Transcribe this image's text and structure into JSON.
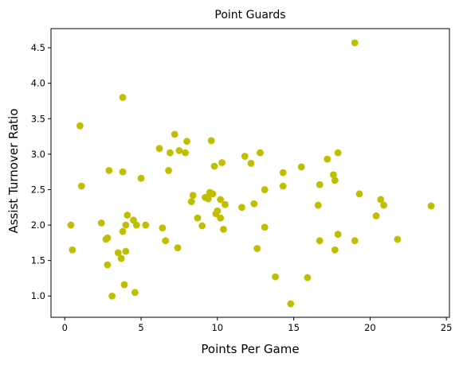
{
  "chart_data": {
    "type": "scatter",
    "title": "Point Guards",
    "xlabel": "Points Per Game",
    "ylabel": "Assist Turnover Ratio",
    "xlim": [
      -0.9,
      25.2
    ],
    "ylim": [
      0.7,
      4.77
    ],
    "xticks": [
      0,
      5,
      10,
      15,
      20,
      25
    ],
    "xtick_labels": [
      "0",
      "5",
      "10",
      "15",
      "20",
      "25"
    ],
    "yticks": [
      1.0,
      1.5,
      2.0,
      2.5,
      3.0,
      3.5,
      4.0,
      4.5
    ],
    "ytick_labels": [
      "1.0",
      "1.5",
      "2.0",
      "2.5",
      "3.0",
      "3.5",
      "4.0",
      "4.5"
    ],
    "grid": false,
    "marker_color": "#bfbf00",
    "points": [
      [
        0.4,
        2.0
      ],
      [
        0.5,
        1.65
      ],
      [
        1.0,
        3.4
      ],
      [
        1.1,
        2.55
      ],
      [
        2.4,
        2.03
      ],
      [
        2.7,
        1.8
      ],
      [
        2.8,
        1.82
      ],
      [
        2.8,
        1.44
      ],
      [
        2.9,
        2.77
      ],
      [
        3.1,
        1.0
      ],
      [
        3.5,
        1.61
      ],
      [
        3.7,
        1.53
      ],
      [
        3.8,
        2.75
      ],
      [
        3.8,
        3.8
      ],
      [
        3.8,
        1.91
      ],
      [
        3.9,
        1.16
      ],
      [
        4.0,
        2.0
      ],
      [
        4.0,
        1.63
      ],
      [
        4.1,
        2.14
      ],
      [
        4.5,
        2.07
      ],
      [
        4.6,
        1.05
      ],
      [
        4.7,
        2.0
      ],
      [
        5.0,
        2.66
      ],
      [
        5.3,
        2.0
      ],
      [
        6.2,
        3.08
      ],
      [
        6.4,
        1.96
      ],
      [
        6.6,
        1.78
      ],
      [
        6.8,
        2.77
      ],
      [
        6.9,
        3.02
      ],
      [
        7.2,
        3.28
      ],
      [
        7.4,
        1.68
      ],
      [
        7.5,
        3.05
      ],
      [
        7.9,
        3.02
      ],
      [
        8.0,
        3.18
      ],
      [
        8.3,
        2.33
      ],
      [
        8.4,
        2.42
      ],
      [
        8.7,
        2.1
      ],
      [
        9.0,
        1.99
      ],
      [
        9.2,
        2.39
      ],
      [
        9.4,
        2.37
      ],
      [
        9.5,
        2.46
      ],
      [
        9.6,
        3.19
      ],
      [
        9.7,
        2.44
      ],
      [
        9.8,
        2.83
      ],
      [
        9.9,
        2.16
      ],
      [
        10.0,
        2.2
      ],
      [
        10.2,
        2.36
      ],
      [
        10.2,
        2.1
      ],
      [
        10.3,
        2.88
      ],
      [
        10.4,
        1.94
      ],
      [
        10.5,
        2.29
      ],
      [
        11.6,
        2.25
      ],
      [
        11.8,
        2.97
      ],
      [
        12.2,
        2.87
      ],
      [
        12.4,
        2.3
      ],
      [
        12.6,
        1.67
      ],
      [
        12.8,
        3.02
      ],
      [
        13.1,
        2.5
      ],
      [
        13.1,
        1.97
      ],
      [
        13.8,
        1.27
      ],
      [
        14.3,
        2.74
      ],
      [
        14.3,
        2.55
      ],
      [
        14.8,
        0.89
      ],
      [
        15.5,
        2.82
      ],
      [
        15.9,
        1.26
      ],
      [
        16.6,
        2.28
      ],
      [
        16.7,
        2.57
      ],
      [
        16.7,
        1.78
      ],
      [
        17.2,
        2.93
      ],
      [
        17.6,
        2.71
      ],
      [
        17.7,
        2.63
      ],
      [
        17.7,
        1.65
      ],
      [
        17.9,
        3.02
      ],
      [
        17.9,
        1.87
      ],
      [
        19.0,
        4.57
      ],
      [
        19.0,
        1.78
      ],
      [
        19.3,
        2.44
      ],
      [
        20.4,
        2.13
      ],
      [
        20.7,
        2.36
      ],
      [
        20.9,
        2.28
      ],
      [
        21.8,
        1.8
      ],
      [
        24.0,
        2.27
      ]
    ]
  }
}
